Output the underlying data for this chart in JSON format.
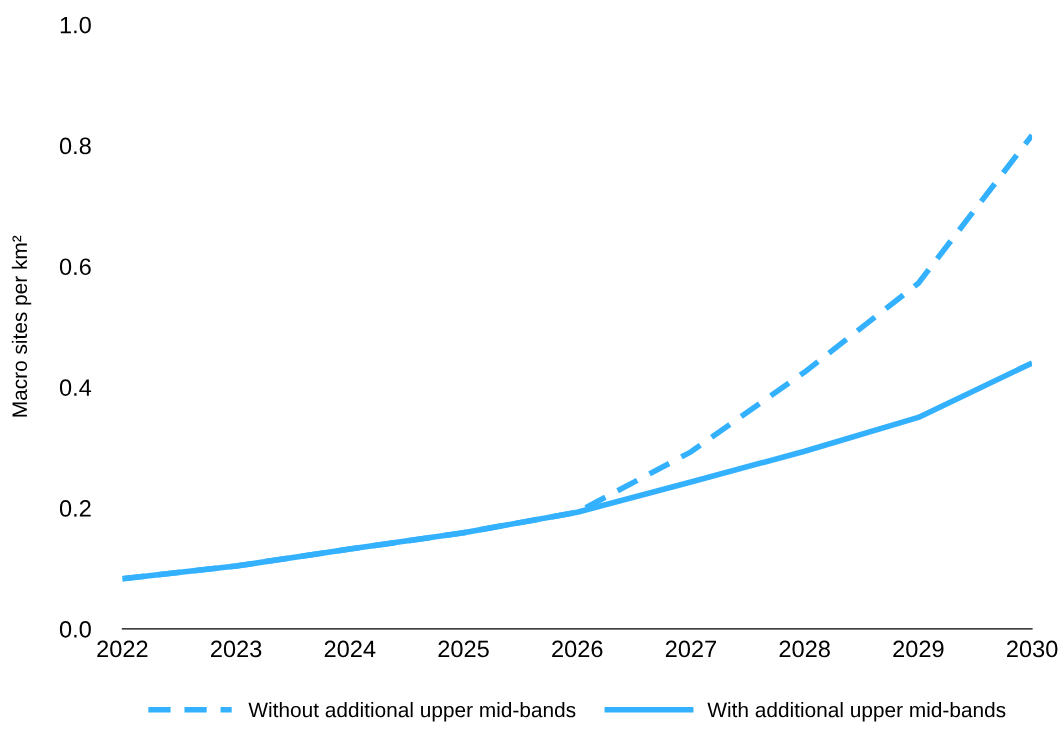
{
  "chart_data": {
    "type": "line",
    "ylabel": "Macro sites per km²",
    "x": [
      2022,
      2023,
      2024,
      2025,
      2026,
      2027,
      2028,
      2029,
      2030
    ],
    "series": [
      {
        "name": "Without additional upper mid-bands",
        "color": "#33b1ff",
        "line_style": "dashed",
        "values": [
          0.083,
          0.104,
          0.132,
          0.159,
          0.193,
          0.293,
          0.425,
          0.572,
          0.817
        ]
      },
      {
        "name": "With additional upper mid-bands",
        "color": "#33b1ff",
        "line_style": "solid",
        "values": [
          0.083,
          0.104,
          0.132,
          0.159,
          0.193,
          0.243,
          0.294,
          0.35,
          0.44
        ]
      }
    ],
    "xlim": [
      2022,
      2030
    ],
    "xticks": [
      2022,
      2023,
      2024,
      2025,
      2026,
      2027,
      2028,
      2029,
      2030
    ],
    "ylim": [
      0,
      1
    ],
    "yticks": [
      {
        "value": 0,
        "label": "0.0"
      },
      {
        "value": 0.2,
        "label": "0.2"
      },
      {
        "value": 0.4,
        "label": "0.4"
      },
      {
        "value": 0.6,
        "label": "0.6"
      },
      {
        "value": 0.8,
        "label": "0.8"
      },
      {
        "value": 1,
        "label": "1.0"
      }
    ],
    "grid": false,
    "legend": "bottom"
  }
}
